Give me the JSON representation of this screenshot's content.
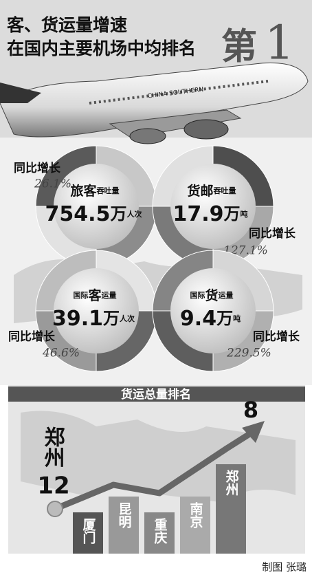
{
  "title": {
    "line1": "客、货运量增速",
    "line2": "在国内主要机场中均排名",
    "rank_prefix": "第",
    "rank_number": "1"
  },
  "plane_text": "CHINA SOUTHERN",
  "metrics": [
    {
      "label": [
        "旅客",
        "吞吐量"
      ],
      "number": "754.5",
      "wan": "万",
      "unit": "人次",
      "growth_label": "同比增长",
      "growth": "26.1%"
    },
    {
      "label": [
        "货邮",
        "吞吐量"
      ],
      "number": "17.9",
      "wan": "万",
      "unit": "吨",
      "growth_label": "同比增长",
      "growth": "127.1%"
    },
    {
      "label": [
        "国际",
        "客",
        "运量"
      ],
      "number": "39.1",
      "wan": "万",
      "unit": "人次",
      "growth_label": "同比增长",
      "growth": "46.6%"
    },
    {
      "label": [
        "国际",
        "货",
        "运量"
      ],
      "number": "9.4",
      "wan": "万",
      "unit": "吨",
      "growth_label": "同比增长",
      "growth": "229.5%"
    }
  ],
  "ranking": {
    "title": "货运总量排名",
    "city": "郑州",
    "from_rank": "12",
    "to_rank": "8",
    "cities": [
      "厦门",
      "昆明",
      "重庆",
      "南京",
      "郑州"
    ]
  },
  "credit": "制图 张璐"
}
